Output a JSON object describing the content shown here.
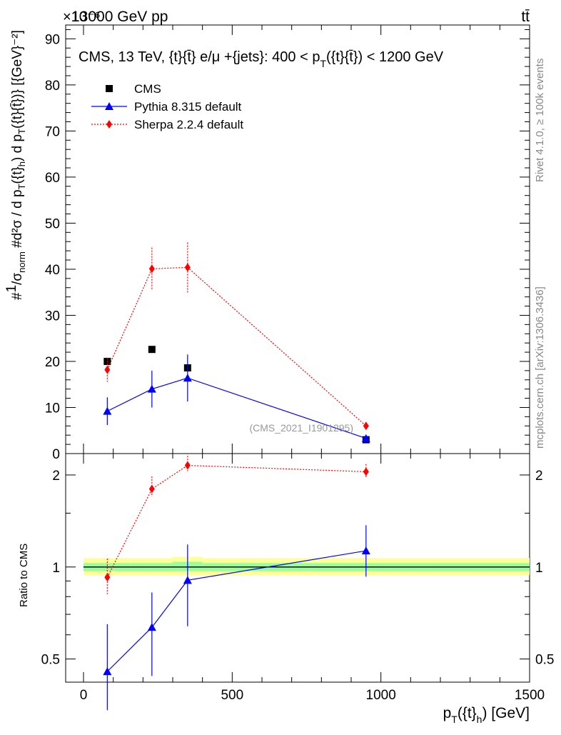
{
  "header": {
    "left": "13000 GeV pp",
    "right": "tt̄",
    "exponent": "×10⁻⁶"
  },
  "side_labels": {
    "rivet": "Rivet 4.1.0, ≥ 100k events",
    "mcplots": "mcplots.cern.ch [arXiv:1306.3436]"
  },
  "colors": {
    "cms": "#000000",
    "pythia": "#0000ff",
    "sherpa": "#ff0000",
    "band_outer": "#ffff99",
    "band_inner": "#99ff99"
  },
  "chart_data": [
    {
      "type": "scatter",
      "title": "CMS, 13 TeV, {t}{t̄} e/μ +{jets}: 400 < p_T({t}{t̄}) < 1200 GeV",
      "ylabel": "#1/σ_norm #d²σ/(d p_T({t}_h) d p_T({t}{t̄})) [{GeV}⁻²]",
      "watermark": "(CMS_2021_I1901295)",
      "ylim": [
        0,
        93
      ],
      "y_scale_exponent": -6,
      "yticks": [
        0,
        10,
        20,
        30,
        40,
        50,
        60,
        70,
        80,
        90
      ],
      "xlim": [
        -60,
        1500
      ],
      "legend": {
        "location": "top-left",
        "entries": [
          "CMS",
          "Pythia 8.315 default",
          "Sherpa 2.2.4 default"
        ]
      },
      "series": [
        {
          "name": "CMS",
          "marker": "square",
          "x": [
            80,
            230,
            350,
            950
          ],
          "y": [
            20,
            22.6,
            18.6,
            3.0
          ]
        },
        {
          "name": "Pythia 8.315 default",
          "marker": "triangle",
          "line": "solid",
          "x": [
            80,
            230,
            350,
            950
          ],
          "y": [
            9.2,
            14.0,
            16.4,
            3.3
          ],
          "yerr_low": [
            3.0,
            4.0,
            5.1,
            0.5
          ],
          "yerr_high": [
            3.0,
            4.0,
            5.1,
            0.5
          ]
        },
        {
          "name": "Sherpa 2.2.4 default",
          "marker": "diamond",
          "line": "dotted",
          "x": [
            80,
            230,
            350,
            950
          ],
          "y": [
            18.2,
            40.1,
            40.4,
            6.0
          ],
          "yerr_low": [
            2.6,
            4.6,
            5.4,
            0.6
          ],
          "yerr_high": [
            2.6,
            4.6,
            5.4,
            0.6
          ]
        }
      ]
    },
    {
      "type": "line",
      "ylabel": "Ratio to CMS",
      "xlabel": "p_T({t}_h) [GeV]",
      "yscale": "log",
      "ylim": [
        0.42,
        2.35
      ],
      "yticks": [
        0.5,
        1,
        2
      ],
      "xlim": [
        -60,
        1500
      ],
      "xticks": [
        0,
        500,
        1000,
        1500
      ],
      "bands": {
        "edges": [
          0,
          160,
          300,
          400,
          1500
        ],
        "outer_low": [
          0.94,
          0.94,
          0.94,
          0.94
        ],
        "outer_high": [
          1.07,
          1.07,
          1.08,
          1.07
        ],
        "inner_low": [
          0.97,
          0.97,
          0.97,
          0.97
        ],
        "inner_high": [
          1.03,
          1.03,
          1.04,
          1.03
        ]
      },
      "series": [
        {
          "name": "Pythia 8.315 default",
          "x": [
            80,
            230,
            350,
            950
          ],
          "y": [
            0.455,
            0.635,
            0.905,
            1.13
          ],
          "yerr_low": [
            0.115,
            0.195,
            0.265,
            0.2
          ],
          "yerr_high": [
            0.195,
            0.19,
            0.28,
            0.24
          ]
        },
        {
          "name": "Sherpa 2.2.4 default",
          "x": [
            80,
            230,
            350,
            950
          ],
          "y": [
            0.925,
            1.8,
            2.15,
            2.05
          ],
          "yerr_low": [
            0.11,
            0.1,
            0.09,
            0.09
          ],
          "yerr_high": [
            0.14,
            0.18,
            0.16,
            0.12
          ]
        }
      ]
    }
  ]
}
